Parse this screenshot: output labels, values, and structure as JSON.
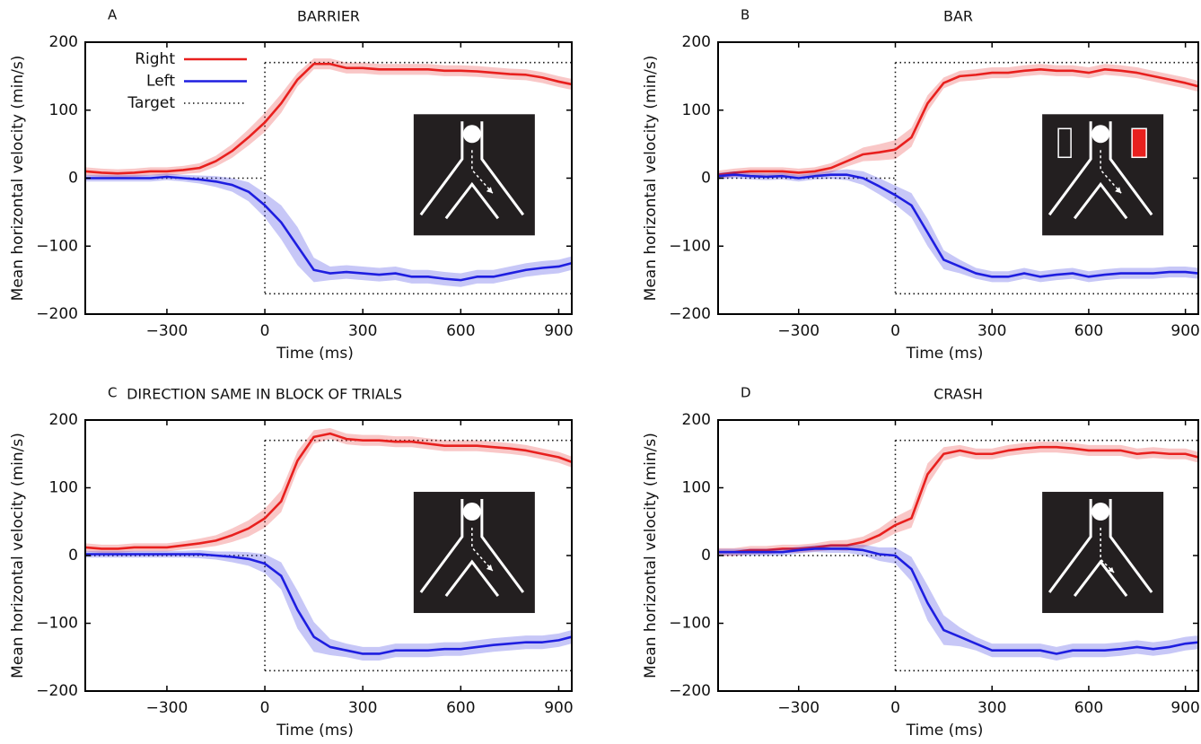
{
  "chart_data": [
    {
      "type": "line",
      "label": "A",
      "title": "BARRIER",
      "xlabel": "Time (ms)",
      "ylabel": "Mean horizontal velocity (min/s)",
      "x": [
        -550,
        -500,
        -450,
        -400,
        -350,
        -300,
        -250,
        -200,
        -150,
        -100,
        -50,
        0,
        50,
        100,
        150,
        200,
        250,
        300,
        350,
        400,
        450,
        500,
        550,
        600,
        650,
        700,
        750,
        800,
        850,
        900,
        940
      ],
      "xlim": [
        -550,
        940
      ],
      "ylim": [
        -200,
        200
      ],
      "xticks": [
        {
          "value": -300,
          "label": "−300"
        },
        0,
        300,
        600,
        900
      ],
      "yticks": [
        {
          "value": -200,
          "label": "−200"
        },
        {
          "value": -100,
          "label": "−100"
        },
        0,
        100,
        200
      ],
      "legend": "upper left",
      "series": [
        {
          "name": "Right",
          "color": "#e8201e",
          "values": [
            10,
            8,
            7,
            8,
            10,
            10,
            12,
            15,
            25,
            40,
            60,
            82,
            110,
            145,
            168,
            168,
            162,
            162,
            160,
            160,
            160,
            160,
            158,
            158,
            157,
            155,
            153,
            152,
            148,
            142,
            138
          ],
          "errors": [
            6,
            6,
            6,
            6,
            6,
            6,
            6,
            7,
            8,
            10,
            12,
            14,
            14,
            10,
            8,
            8,
            8,
            8,
            8,
            8,
            8,
            8,
            8,
            8,
            8,
            8,
            8,
            8,
            8,
            8,
            8
          ]
        },
        {
          "name": "Left",
          "color": "#1e1ee0",
          "values": [
            0,
            0,
            0,
            0,
            0,
            2,
            0,
            -2,
            -5,
            -10,
            -20,
            -40,
            -65,
            -100,
            -135,
            -140,
            -138,
            -140,
            -142,
            -140,
            -145,
            -145,
            -148,
            -150,
            -145,
            -145,
            -140,
            -135,
            -132,
            -130,
            -125
          ],
          "errors": [
            5,
            5,
            5,
            5,
            5,
            5,
            5,
            6,
            8,
            10,
            14,
            18,
            25,
            28,
            18,
            10,
            10,
            10,
            10,
            10,
            10,
            10,
            10,
            10,
            10,
            10,
            10,
            10,
            10,
            10,
            10
          ]
        }
      ],
      "target": {
        "name": "Target",
        "baseline": 0,
        "onset": 0,
        "levels": [
          170,
          -170
        ]
      }
    },
    {
      "type": "line",
      "label": "B",
      "title": "BAR",
      "xlabel": "Time (ms)",
      "ylabel": "Mean horizontal velocity (min/s)",
      "x": [
        -550,
        -500,
        -450,
        -400,
        -350,
        -300,
        -250,
        -200,
        -150,
        -100,
        -50,
        0,
        50,
        100,
        150,
        200,
        250,
        300,
        350,
        400,
        450,
        500,
        550,
        600,
        650,
        700,
        750,
        800,
        850,
        900,
        940
      ],
      "xlim": [
        -550,
        940
      ],
      "ylim": [
        -200,
        200
      ],
      "xticks": [
        {
          "value": -300,
          "label": "−300"
        },
        0,
        300,
        600,
        900
      ],
      "yticks": [
        {
          "value": -200,
          "label": "−200"
        },
        {
          "value": -100,
          "label": "−100"
        },
        0,
        100,
        200
      ],
      "series": [
        {
          "color": "#e8201e",
          "values": [
            5,
            8,
            10,
            10,
            10,
            8,
            10,
            15,
            25,
            35,
            38,
            42,
            60,
            110,
            140,
            150,
            152,
            155,
            155,
            158,
            160,
            158,
            158,
            155,
            160,
            158,
            155,
            150,
            145,
            140,
            135
          ],
          "errors": [
            6,
            6,
            6,
            6,
            6,
            6,
            6,
            7,
            8,
            10,
            12,
            14,
            14,
            12,
            8,
            8,
            8,
            8,
            8,
            8,
            8,
            8,
            8,
            8,
            8,
            8,
            8,
            8,
            8,
            8,
            8
          ]
        },
        {
          "color": "#1e1ee0",
          "values": [
            3,
            5,
            3,
            2,
            3,
            0,
            3,
            5,
            5,
            0,
            -12,
            -25,
            -40,
            -80,
            -120,
            -130,
            -140,
            -145,
            -145,
            -140,
            -145,
            -142,
            -140,
            -145,
            -142,
            -140,
            -140,
            -140,
            -138,
            -138,
            -140
          ],
          "errors": [
            5,
            5,
            5,
            5,
            5,
            5,
            5,
            6,
            8,
            10,
            12,
            14,
            18,
            20,
            14,
            10,
            8,
            8,
            8,
            8,
            8,
            8,
            8,
            8,
            8,
            8,
            8,
            8,
            8,
            8,
            8
          ]
        }
      ],
      "target": {
        "baseline": 0,
        "onset": 0,
        "levels": [
          170,
          -170
        ]
      }
    },
    {
      "type": "line",
      "label": "C",
      "title": "DIRECTION SAME IN BLOCK OF TRIALS",
      "xlabel": "Time (ms)",
      "ylabel": "Mean horizontal velocity (min/s)",
      "x": [
        -550,
        -500,
        -450,
        -400,
        -350,
        -300,
        -250,
        -200,
        -150,
        -100,
        -50,
        0,
        50,
        100,
        150,
        200,
        250,
        300,
        350,
        400,
        450,
        500,
        550,
        600,
        650,
        700,
        750,
        800,
        850,
        900,
        940
      ],
      "xlim": [
        -550,
        940
      ],
      "ylim": [
        -200,
        200
      ],
      "xticks": [
        {
          "value": -300,
          "label": "−300"
        },
        0,
        300,
        600,
        900
      ],
      "yticks": [
        {
          "value": -200,
          "label": "−200"
        },
        {
          "value": -100,
          "label": "−100"
        },
        0,
        100,
        200
      ],
      "series": [
        {
          "color": "#e8201e",
          "values": [
            12,
            10,
            10,
            12,
            12,
            12,
            15,
            18,
            22,
            30,
            40,
            55,
            80,
            140,
            175,
            180,
            172,
            170,
            170,
            168,
            168,
            165,
            162,
            162,
            162,
            160,
            158,
            155,
            150,
            145,
            138
          ],
          "errors": [
            6,
            6,
            6,
            6,
            6,
            6,
            6,
            7,
            8,
            10,
            12,
            14,
            16,
            14,
            10,
            8,
            8,
            8,
            8,
            8,
            8,
            8,
            8,
            8,
            8,
            8,
            8,
            8,
            8,
            8,
            8
          ]
        },
        {
          "color": "#1e1ee0",
          "values": [
            2,
            2,
            2,
            2,
            2,
            2,
            2,
            2,
            0,
            -2,
            -5,
            -12,
            -30,
            -80,
            -120,
            -135,
            -140,
            -145,
            -145,
            -140,
            -140,
            -140,
            -138,
            -138,
            -135,
            -132,
            -130,
            -128,
            -128,
            -125,
            -120
          ],
          "errors": [
            5,
            5,
            5,
            5,
            5,
            5,
            5,
            6,
            6,
            8,
            10,
            14,
            20,
            28,
            22,
            12,
            10,
            10,
            10,
            10,
            10,
            10,
            10,
            10,
            10,
            10,
            10,
            10,
            10,
            10,
            10
          ]
        }
      ],
      "target": {
        "baseline": 0,
        "onset": 0,
        "levels": [
          170,
          -170
        ]
      }
    },
    {
      "type": "line",
      "label": "D",
      "title": "CRASH",
      "xlabel": "Time (ms)",
      "ylabel": "Mean horizontal velocity (min/s)",
      "x": [
        -550,
        -500,
        -450,
        -400,
        -350,
        -300,
        -250,
        -200,
        -150,
        -100,
        -50,
        0,
        50,
        100,
        150,
        200,
        250,
        300,
        350,
        400,
        450,
        500,
        550,
        600,
        650,
        700,
        750,
        800,
        850,
        900,
        940
      ],
      "xlim": [
        -550,
        940
      ],
      "ylim": [
        -200,
        200
      ],
      "xticks": [
        {
          "value": -300,
          "label": "−300"
        },
        0,
        300,
        600,
        900
      ],
      "yticks": [
        {
          "value": -200,
          "label": "−200"
        },
        {
          "value": -100,
          "label": "−100"
        },
        0,
        100,
        200
      ],
      "series": [
        {
          "color": "#e8201e",
          "values": [
            5,
            5,
            8,
            8,
            10,
            10,
            12,
            15,
            15,
            20,
            30,
            45,
            55,
            120,
            150,
            155,
            150,
            150,
            155,
            158,
            160,
            160,
            158,
            155,
            155,
            155,
            150,
            152,
            150,
            150,
            145
          ],
          "errors": [
            6,
            6,
            6,
            6,
            6,
            6,
            6,
            7,
            8,
            8,
            10,
            12,
            14,
            16,
            10,
            8,
            8,
            8,
            8,
            8,
            8,
            8,
            8,
            8,
            8,
            8,
            8,
            8,
            8,
            8,
            8
          ]
        },
        {
          "color": "#1e1ee0",
          "values": [
            5,
            5,
            5,
            5,
            5,
            8,
            10,
            10,
            10,
            8,
            2,
            0,
            -20,
            -70,
            -110,
            -120,
            -130,
            -140,
            -140,
            -140,
            -140,
            -145,
            -140,
            -140,
            -140,
            -138,
            -135,
            -138,
            -135,
            -130,
            -128
          ],
          "errors": [
            5,
            5,
            5,
            5,
            5,
            5,
            5,
            6,
            6,
            8,
            10,
            12,
            18,
            26,
            22,
            14,
            10,
            10,
            10,
            10,
            10,
            10,
            10,
            10,
            10,
            10,
            10,
            10,
            10,
            10,
            10
          ]
        }
      ],
      "target": {
        "baseline": 0,
        "onset": 0,
        "levels": [
          170,
          -170
        ]
      }
    }
  ]
}
